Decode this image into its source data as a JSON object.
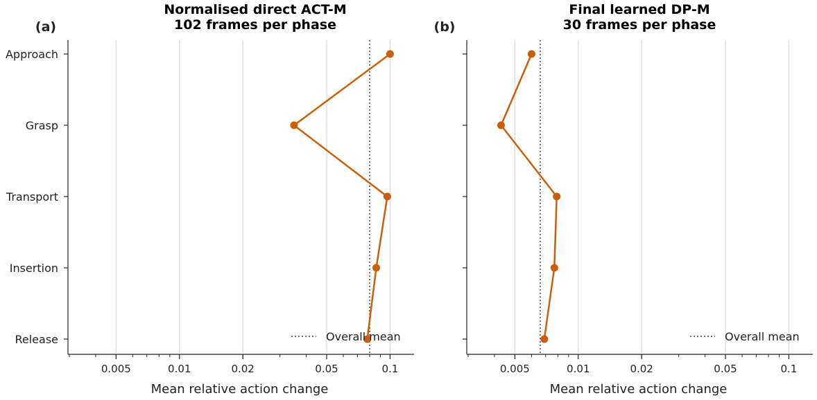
{
  "chart_data": [
    {
      "type": "line",
      "panel_label": "(a)",
      "title_lines": [
        "Normalised direct ACT-M",
        "102 frames per phase"
      ],
      "xlabel": "Mean relative action change",
      "ylabel": "",
      "x_scale": "log",
      "xlim": [
        0.003,
        0.13
      ],
      "xticks": [
        0.005,
        0.01,
        0.02,
        0.05,
        0.1
      ],
      "xtick_labels": [
        "0.005",
        "0.01",
        "0.02",
        "0.05",
        "0.1"
      ],
      "categories": [
        "Approach",
        "Grasp",
        "Transport",
        "Insertion",
        "Release"
      ],
      "values": [
        0.1,
        0.035,
        0.097,
        0.086,
        0.078
      ],
      "overall_mean": 0.08,
      "legend": {
        "label": "Overall mean",
        "placement": "lower-right"
      },
      "grid": "x-major"
    },
    {
      "type": "line",
      "panel_label": "(b)",
      "title_lines": [
        "Final learned DP-M",
        "30 frames per phase"
      ],
      "xlabel": "Mean relative action change",
      "ylabel": "",
      "x_scale": "log",
      "xlim": [
        0.003,
        0.13
      ],
      "xticks": [
        0.005,
        0.01,
        0.02,
        0.05,
        0.1
      ],
      "xtick_labels": [
        "0.005",
        "0.01",
        "0.02",
        "0.05",
        "0.1"
      ],
      "categories": [
        "Approach",
        "Grasp",
        "Transport",
        "Insertion",
        "Release"
      ],
      "values": [
        0.006,
        0.0043,
        0.0079,
        0.0077,
        0.0069
      ],
      "overall_mean": 0.0066,
      "legend": {
        "label": "Overall mean",
        "placement": "lower-right"
      },
      "grid": "x-major"
    }
  ],
  "colors": {
    "series": "#cc5e0a",
    "grid": "#d9d9d9",
    "axis": "#222222",
    "text": "#222222",
    "mean_line": "#444444"
  }
}
